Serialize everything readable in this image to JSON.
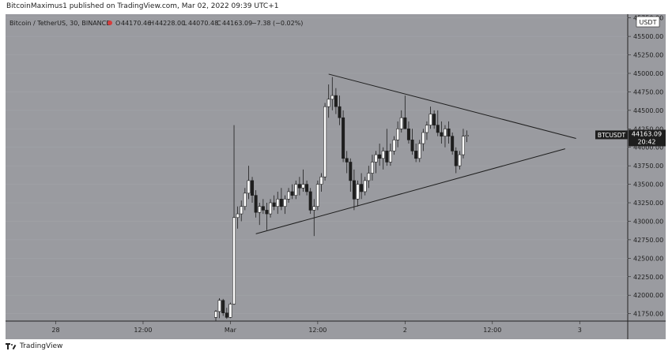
{
  "published_line": "BitcoinMaximus1 published on TradingView.com, Mar 02, 2022 09:39 UTC+1",
  "footer": {
    "brand": "TradingView"
  },
  "currency_badge": "USDT",
  "header": {
    "symbol": "Bitcoin / TetherUS, 30, BINANCE",
    "o_label": "O",
    "o_value": "44170.46",
    "h_label": "H",
    "h_value": "44228.00",
    "l_label": "L",
    "l_value": "44070.48",
    "c_label": "C",
    "c_value": "44163.09",
    "change": "−7.38 (−0.02%)"
  },
  "price_marker": {
    "ticker": "BTCUSDT",
    "price": "44163.09",
    "countdown": "20:42",
    "value": 44163.09
  },
  "colors": {
    "plot_bg": "#9a9ba0",
    "candle_up": "#ffffff",
    "candle_down": "#1e1e1e",
    "trendline": "#1e1e1e",
    "header_accent": "#d63b3b"
  },
  "chart_data": {
    "type": "candlestick",
    "y_ticks": [
      {
        "value": 41750,
        "label": "41750.00"
      },
      {
        "value": 42000,
        "label": "42000.00"
      },
      {
        "value": 42250,
        "label": "42250.00"
      },
      {
        "value": 42500,
        "label": "42500.00"
      },
      {
        "value": 42750,
        "label": "42750.00"
      },
      {
        "value": 43000,
        "label": "43000.00"
      },
      {
        "value": 43250,
        "label": "43250.00"
      },
      {
        "value": 43500,
        "label": "43500.00"
      },
      {
        "value": 43750,
        "label": "43750.00"
      },
      {
        "value": 44000,
        "label": "44000.00"
      },
      {
        "value": 44250,
        "label": "44250.00"
      },
      {
        "value": 44500,
        "label": "44500.00"
      },
      {
        "value": 44750,
        "label": "44750.00"
      },
      {
        "value": 45000,
        "label": "45000.00"
      },
      {
        "value": 45250,
        "label": "45250.00"
      },
      {
        "value": 45500,
        "label": "45500.00"
      },
      {
        "value": 45750,
        "label": "45750.00"
      }
    ],
    "ylim": [
      41650,
      45800
    ],
    "x_ticks": [
      {
        "hour": 0,
        "label": "28"
      },
      {
        "hour": 12,
        "label": "12:00"
      },
      {
        "hour": 24,
        "label": "Mar"
      },
      {
        "hour": 36,
        "label": "12:00"
      },
      {
        "hour": 48,
        "label": "2"
      },
      {
        "hour": 60,
        "label": "12:00"
      },
      {
        "hour": 72,
        "label": "3"
      }
    ],
    "xlim_hours": [
      -6.9,
      78.6
    ],
    "candles": [
      {
        "t": 22.0,
        "o": 41700,
        "h": 41800,
        "l": 41650,
        "c": 41780
      },
      {
        "t": 22.5,
        "o": 41780,
        "h": 41960,
        "l": 41690,
        "c": 41930
      },
      {
        "t": 23.0,
        "o": 41930,
        "h": 41950,
        "l": 41720,
        "c": 41760
      },
      {
        "t": 23.5,
        "o": 41760,
        "h": 41830,
        "l": 41680,
        "c": 41700
      },
      {
        "t": 24.0,
        "o": 41700,
        "h": 41900,
        "l": 41690,
        "c": 41880
      },
      {
        "t": 24.5,
        "o": 41880,
        "h": 44300,
        "l": 41870,
        "c": 43050
      },
      {
        "t": 25.0,
        "o": 43050,
        "h": 43200,
        "l": 42900,
        "c": 43100
      },
      {
        "t": 25.5,
        "o": 43100,
        "h": 43280,
        "l": 43000,
        "c": 43200
      },
      {
        "t": 26.0,
        "o": 43200,
        "h": 43450,
        "l": 43150,
        "c": 43380
      },
      {
        "t": 26.5,
        "o": 43380,
        "h": 43750,
        "l": 43300,
        "c": 43550
      },
      {
        "t": 27.0,
        "o": 43550,
        "h": 43600,
        "l": 43250,
        "c": 43350
      },
      {
        "t": 27.5,
        "o": 43350,
        "h": 43420,
        "l": 43050,
        "c": 43120
      },
      {
        "t": 28.0,
        "o": 43120,
        "h": 43250,
        "l": 42950,
        "c": 43200
      },
      {
        "t": 28.5,
        "o": 43200,
        "h": 43300,
        "l": 43100,
        "c": 43150
      },
      {
        "t": 29.0,
        "o": 43150,
        "h": 43250,
        "l": 42880,
        "c": 43100
      },
      {
        "t": 29.5,
        "o": 43100,
        "h": 43300,
        "l": 43050,
        "c": 43250
      },
      {
        "t": 30.0,
        "o": 43250,
        "h": 43350,
        "l": 43150,
        "c": 43200
      },
      {
        "t": 30.5,
        "o": 43200,
        "h": 43400,
        "l": 43100,
        "c": 43300
      },
      {
        "t": 31.0,
        "o": 43300,
        "h": 43450,
        "l": 43150,
        "c": 43200
      },
      {
        "t": 31.5,
        "o": 43200,
        "h": 43350,
        "l": 43100,
        "c": 43300
      },
      {
        "t": 32.0,
        "o": 43300,
        "h": 43450,
        "l": 43250,
        "c": 43400
      },
      {
        "t": 32.5,
        "o": 43400,
        "h": 43500,
        "l": 43300,
        "c": 43350
      },
      {
        "t": 33.0,
        "o": 43350,
        "h": 43550,
        "l": 43300,
        "c": 43500
      },
      {
        "t": 33.5,
        "o": 43500,
        "h": 43600,
        "l": 43350,
        "c": 43450
      },
      {
        "t": 34.0,
        "o": 43450,
        "h": 43700,
        "l": 43400,
        "c": 43500
      },
      {
        "t": 34.5,
        "o": 43500,
        "h": 43550,
        "l": 43350,
        "c": 43400
      },
      {
        "t": 35.0,
        "o": 43400,
        "h": 43450,
        "l": 43100,
        "c": 43150
      },
      {
        "t": 35.5,
        "o": 43150,
        "h": 43300,
        "l": 42800,
        "c": 43200
      },
      {
        "t": 36.0,
        "o": 43200,
        "h": 43550,
        "l": 43150,
        "c": 43500
      },
      {
        "t": 36.5,
        "o": 43500,
        "h": 43650,
        "l": 43400,
        "c": 43600
      },
      {
        "t": 37.0,
        "o": 43600,
        "h": 44600,
        "l": 43550,
        "c": 44550
      },
      {
        "t": 37.5,
        "o": 44550,
        "h": 44850,
        "l": 44400,
        "c": 44650
      },
      {
        "t": 38.0,
        "o": 44650,
        "h": 44950,
        "l": 44500,
        "c": 44700
      },
      {
        "t": 38.5,
        "o": 44700,
        "h": 44800,
        "l": 44450,
        "c": 44550
      },
      {
        "t": 39.0,
        "o": 44550,
        "h": 44700,
        "l": 44300,
        "c": 44400
      },
      {
        "t": 39.5,
        "o": 44400,
        "h": 44500,
        "l": 43800,
        "c": 43850
      },
      {
        "t": 40.0,
        "o": 43850,
        "h": 43950,
        "l": 43650,
        "c": 43800
      },
      {
        "t": 40.5,
        "o": 43800,
        "h": 43850,
        "l": 43400,
        "c": 43550
      },
      {
        "t": 41.0,
        "o": 43550,
        "h": 43700,
        "l": 43150,
        "c": 43300
      },
      {
        "t": 41.5,
        "o": 43300,
        "h": 43550,
        "l": 43200,
        "c": 43500
      },
      {
        "t": 42.0,
        "o": 43500,
        "h": 43650,
        "l": 43300,
        "c": 43400
      },
      {
        "t": 42.5,
        "o": 43400,
        "h": 43600,
        "l": 43350,
        "c": 43550
      },
      {
        "t": 43.0,
        "o": 43550,
        "h": 43750,
        "l": 43450,
        "c": 43650
      },
      {
        "t": 43.5,
        "o": 43650,
        "h": 43900,
        "l": 43550,
        "c": 43800
      },
      {
        "t": 44.0,
        "o": 43800,
        "h": 43950,
        "l": 43650,
        "c": 43900
      },
      {
        "t": 44.5,
        "o": 43900,
        "h": 44050,
        "l": 43750,
        "c": 43850
      },
      {
        "t": 45.0,
        "o": 43850,
        "h": 44000,
        "l": 43700,
        "c": 43950
      },
      {
        "t": 45.5,
        "o": 43950,
        "h": 44250,
        "l": 43750,
        "c": 43800
      },
      {
        "t": 46.0,
        "o": 43800,
        "h": 44050,
        "l": 43750,
        "c": 43950
      },
      {
        "t": 46.5,
        "o": 43950,
        "h": 44150,
        "l": 43900,
        "c": 44100
      },
      {
        "t": 47.0,
        "o": 44100,
        "h": 44350,
        "l": 44000,
        "c": 44250
      },
      {
        "t": 47.5,
        "o": 44250,
        "h": 44500,
        "l": 44200,
        "c": 44400
      },
      {
        "t": 48.0,
        "o": 44400,
        "h": 44700,
        "l": 44250,
        "c": 44250
      },
      {
        "t": 48.5,
        "o": 44250,
        "h": 44350,
        "l": 44050,
        "c": 44100
      },
      {
        "t": 49.0,
        "o": 44100,
        "h": 44250,
        "l": 43900,
        "c": 43950
      },
      {
        "t": 49.5,
        "o": 43950,
        "h": 44050,
        "l": 43800,
        "c": 43850
      },
      {
        "t": 50.0,
        "o": 43850,
        "h": 44100,
        "l": 43800,
        "c": 44050
      },
      {
        "t": 50.5,
        "o": 44050,
        "h": 44250,
        "l": 43950,
        "c": 44200
      },
      {
        "t": 51.0,
        "o": 44200,
        "h": 44350,
        "l": 44100,
        "c": 44300
      },
      {
        "t": 51.5,
        "o": 44300,
        "h": 44550,
        "l": 44250,
        "c": 44450
      },
      {
        "t": 52.0,
        "o": 44450,
        "h": 44500,
        "l": 44250,
        "c": 44300
      },
      {
        "t": 52.5,
        "o": 44300,
        "h": 44500,
        "l": 44150,
        "c": 44200
      },
      {
        "t": 53.0,
        "o": 44200,
        "h": 44350,
        "l": 44050,
        "c": 44150
      },
      {
        "t": 53.5,
        "o": 44150,
        "h": 44300,
        "l": 44000,
        "c": 44250
      },
      {
        "t": 54.0,
        "o": 44250,
        "h": 44350,
        "l": 44050,
        "c": 44150
      },
      {
        "t": 54.5,
        "o": 44150,
        "h": 44200,
        "l": 43900,
        "c": 43950
      },
      {
        "t": 55.0,
        "o": 43950,
        "h": 44000,
        "l": 43650,
        "c": 43750
      },
      {
        "t": 55.5,
        "o": 43750,
        "h": 43950,
        "l": 43700,
        "c": 43900
      },
      {
        "t": 56.0,
        "o": 43900,
        "h": 44250,
        "l": 43850,
        "c": 44150
      },
      {
        "t": 56.5,
        "o": 44150,
        "h": 44228,
        "l": 44070,
        "c": 44163
      }
    ],
    "trendlines": [
      {
        "name": "upper",
        "p1": {
          "t": 37.5,
          "price": 44990
        },
        "p2": {
          "t": 71.5,
          "price": 44120
        }
      },
      {
        "name": "lower",
        "p1": {
          "t": 27.5,
          "price": 42830
        },
        "p2": {
          "t": 70.0,
          "price": 43980
        }
      }
    ]
  }
}
